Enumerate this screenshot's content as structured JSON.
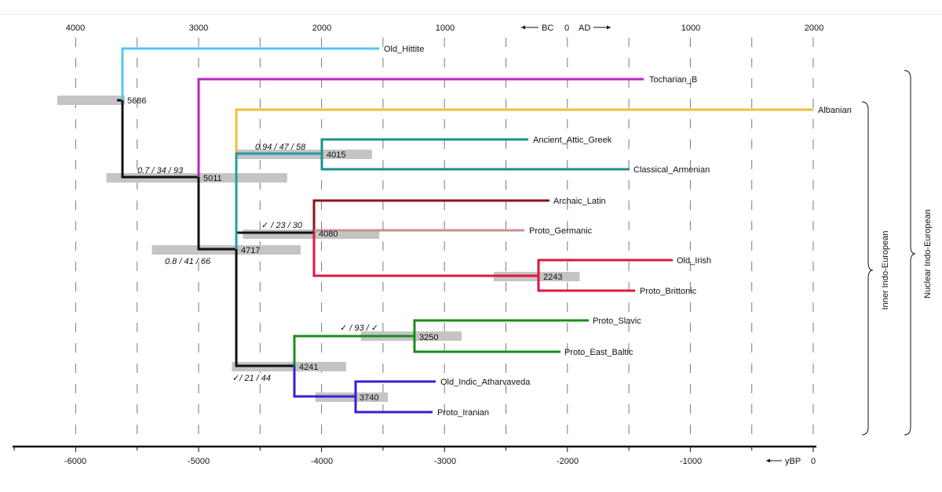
{
  "chart_data": {
    "type": "dendrogram",
    "title": "",
    "top_axis": {
      "ticks": [
        "4000",
        "3000",
        "2000",
        "1000",
        "1000",
        "2000"
      ],
      "era_label": "BC  0  AD",
      "bc_label": "BC",
      "zero_label": "0",
      "ad_label": "AD"
    },
    "bottom_axis": {
      "unit": "yBP",
      "ticks": [
        "-6000",
        "-5000",
        "-4000",
        "-3000",
        "-2000",
        "-1000",
        "0"
      ],
      "range": [
        -6500,
        0
      ]
    },
    "colors": {
      "Old_Hittite": "#4fc8ef",
      "Tocharian_B": "#c024c0",
      "Albanian": "#f3bd35",
      "greek_armenian": "#18918f",
      "Archaic_Latin": "#8b1414",
      "Proto_Germanic": "#c99090",
      "celtic": "#e0163c",
      "balto_slavic": "#1c8c1c",
      "indo_iranian": "#3a1fd0",
      "inner_stem": "#2a9aa5",
      "backbone": "#111111",
      "interval": "#c4c4c4"
    },
    "leaves": [
      {
        "name": "Old_Hittite",
        "end": -3500
      },
      {
        "name": "Tocharian_B",
        "end": -1350
      },
      {
        "name": "Albanian",
        "end": 0
      },
      {
        "name": "Ancient_Attic_Greek",
        "end": -2350
      },
      {
        "name": "Classical_Armenian",
        "end": -1500
      },
      {
        "name": "Archaic_Latin",
        "end": -2200
      },
      {
        "name": "Proto_Germanic",
        "end": -2350
      },
      {
        "name": "Old_Irish",
        "end": -1150
      },
      {
        "name": "Proto_Brittonic",
        "end": -1450
      },
      {
        "name": "Proto_Slavic",
        "end": -1850
      },
      {
        "name": "Proto_East_Baltic",
        "end": -2050
      },
      {
        "name": "Old_Indic_Atharvaveda",
        "end": -3050
      },
      {
        "name": "Proto_Iranian",
        "end": -3100
      }
    ],
    "nodes": [
      {
        "age": "5686",
        "value": -5650,
        "interval": [
          -6150,
          -5600
        ],
        "support": ""
      },
      {
        "age": "5011",
        "value": -5000,
        "interval": [
          -5750,
          -4280
        ],
        "support": "0.7 / 34 / 93"
      },
      {
        "age": "4717",
        "value": -4700,
        "interval": [
          -5380,
          -4170
        ],
        "support": "0.8 / 41 / 66"
      },
      {
        "age": "4015",
        "value": -4050,
        "interval": [
          -4700,
          -3590
        ],
        "support": "0.94 / 47 / 58"
      },
      {
        "age": "4080",
        "value": -4080,
        "interval": [
          -4640,
          -3530
        ],
        "support": "✓ / 23 / 30"
      },
      {
        "age": "2243",
        "value": -2250,
        "interval": [
          -2600,
          -1900
        ],
        "support": ""
      },
      {
        "age": "4241",
        "value": -4250,
        "interval": [
          -4730,
          -3800
        ],
        "support": "✓/ 21 / 44"
      },
      {
        "age": "3250",
        "value": -3250,
        "interval": [
          -3680,
          -2860
        ],
        "support": "✓ / 93 / ✓"
      },
      {
        "age": "3740",
        "value": -3740,
        "interval": [
          -4050,
          -3460
        ],
        "support": ""
      }
    ],
    "groups": [
      {
        "label": "Inner Indo-European"
      },
      {
        "label": "Nuclear Indo-European"
      }
    ]
  }
}
